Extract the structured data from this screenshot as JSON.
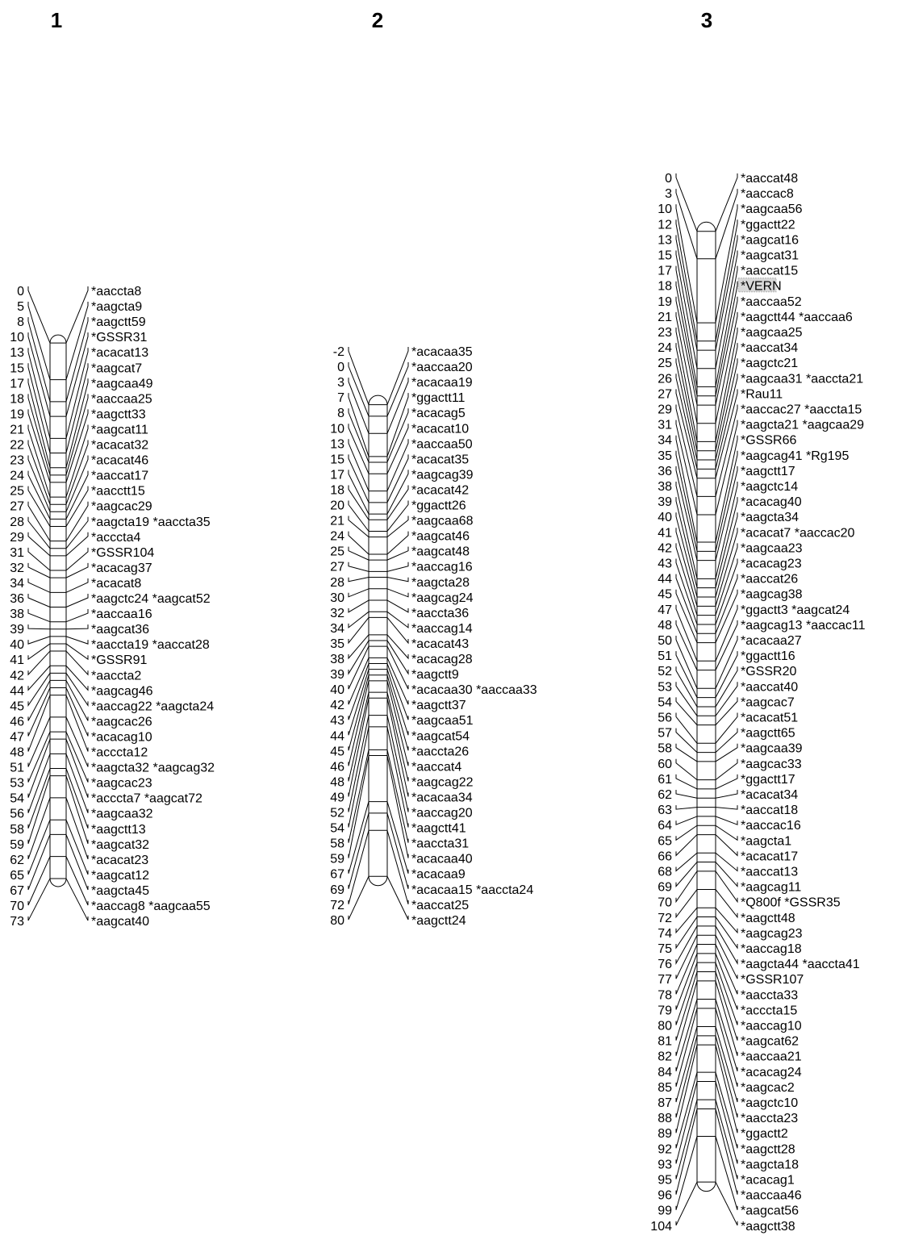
{
  "maps": [
    {
      "title": "1",
      "markers": [
        {
          "pos": 0,
          "label": "*aaccta8"
        },
        {
          "pos": 5,
          "label": "*aagcta9"
        },
        {
          "pos": 8,
          "label": "*aagctt59"
        },
        {
          "pos": 10,
          "label": "*GSSR31"
        },
        {
          "pos": 13,
          "label": "*acacat13"
        },
        {
          "pos": 15,
          "label": "*aagcat7"
        },
        {
          "pos": 17,
          "label": "*aagcaa49"
        },
        {
          "pos": 18,
          "label": "*aaccaa25"
        },
        {
          "pos": 19,
          "label": "*aagctt33"
        },
        {
          "pos": 21,
          "label": "*aagcat11"
        },
        {
          "pos": 22,
          "label": "*acacat32"
        },
        {
          "pos": 23,
          "label": "*acacat46"
        },
        {
          "pos": 24,
          "label": "*aaccat17"
        },
        {
          "pos": 25,
          "label": "*aacctt15"
        },
        {
          "pos": 27,
          "label": "*aagcac29"
        },
        {
          "pos": 28,
          "label": "*aagcta19 *aaccta35"
        },
        {
          "pos": 29,
          "label": "*acccta4"
        },
        {
          "pos": 31,
          "label": "*GSSR104"
        },
        {
          "pos": 32,
          "label": "*acacag37"
        },
        {
          "pos": 34,
          "label": "*acacat8"
        },
        {
          "pos": 36,
          "label": "*aagctc24 *aagcat52"
        },
        {
          "pos": 38,
          "label": "*aaccaa16"
        },
        {
          "pos": 39,
          "label": "*aagcat36"
        },
        {
          "pos": 40,
          "label": "*aaccta19 *aaccat28"
        },
        {
          "pos": 41,
          "label": "*GSSR91"
        },
        {
          "pos": 42,
          "label": "*aaccta2"
        },
        {
          "pos": 44,
          "label": "*aagcag46"
        },
        {
          "pos": 45,
          "label": "*aaccag22 *aagcta24"
        },
        {
          "pos": 46,
          "label": "*aagcac26"
        },
        {
          "pos": 47,
          "label": "*acacag10"
        },
        {
          "pos": 48,
          "label": "*acccta12"
        },
        {
          "pos": 51,
          "label": "*aagcta32 *aagcag32"
        },
        {
          "pos": 53,
          "label": "*aagcac23"
        },
        {
          "pos": 54,
          "label": "*acccta7 *aagcat72"
        },
        {
          "pos": 56,
          "label": "*aagcaa32"
        },
        {
          "pos": 58,
          "label": "*aagctt13"
        },
        {
          "pos": 59,
          "label": "*aagcat32"
        },
        {
          "pos": 62,
          "label": "*acacat23"
        },
        {
          "pos": 65,
          "label": "*aagcat12"
        },
        {
          "pos": 67,
          "label": "*aagcta45"
        },
        {
          "pos": 70,
          "label": "*aaccag8 *aagcaa55"
        },
        {
          "pos": 73,
          "label": "*aagcat40"
        }
      ]
    },
    {
      "title": "2",
      "markers": [
        {
          "pos": -2,
          "label": "*acacaa35"
        },
        {
          "pos": 0,
          "label": "*aaccaa20"
        },
        {
          "pos": 3,
          "label": "*acacaa19"
        },
        {
          "pos": 7,
          "label": "*ggactt11"
        },
        {
          "pos": 8,
          "label": "*acacag5"
        },
        {
          "pos": 10,
          "label": "*acacat10"
        },
        {
          "pos": 13,
          "label": "*aaccaa50"
        },
        {
          "pos": 15,
          "label": "*acacat35"
        },
        {
          "pos": 17,
          "label": "*aagcag39"
        },
        {
          "pos": 18,
          "label": "*acacat42"
        },
        {
          "pos": 20,
          "label": "*ggactt26"
        },
        {
          "pos": 21,
          "label": "*aagcaa68"
        },
        {
          "pos": 24,
          "label": "*aagcat46"
        },
        {
          "pos": 25,
          "label": "*aagcat48"
        },
        {
          "pos": 27,
          "label": "*aaccag16"
        },
        {
          "pos": 28,
          "label": "*aagcta28"
        },
        {
          "pos": 30,
          "label": "*aagcag24"
        },
        {
          "pos": 32,
          "label": "*aaccta36"
        },
        {
          "pos": 34,
          "label": "*aaccag14"
        },
        {
          "pos": 35,
          "label": "*acacat43"
        },
        {
          "pos": 38,
          "label": "*acacag28"
        },
        {
          "pos": 39,
          "label": "*aagctt9"
        },
        {
          "pos": 40,
          "label": "*acacaa30 *aaccaa33"
        },
        {
          "pos": 42,
          "label": "*aagctt37"
        },
        {
          "pos": 43,
          "label": "*aagcaa51"
        },
        {
          "pos": 44,
          "label": "*aagcat54"
        },
        {
          "pos": 45,
          "label": "*aaccta26"
        },
        {
          "pos": 46,
          "label": "*aaccat4"
        },
        {
          "pos": 48,
          "label": "*aagcag22"
        },
        {
          "pos": 49,
          "label": "*acacaa34"
        },
        {
          "pos": 52,
          "label": "*aaccag20"
        },
        {
          "pos": 54,
          "label": "*aagctt41"
        },
        {
          "pos": 58,
          "label": "*aaccta31"
        },
        {
          "pos": 59,
          "label": "*acacaa40"
        },
        {
          "pos": 67,
          "label": "*acacaa9"
        },
        {
          "pos": 69,
          "label": "*acacaa15 *aaccta24"
        },
        {
          "pos": 72,
          "label": "*aaccat25"
        },
        {
          "pos": 80,
          "label": "*aagctt24"
        }
      ]
    },
    {
      "title": "3",
      "markers": [
        {
          "pos": 0,
          "label": "*aaccat48"
        },
        {
          "pos": 3,
          "label": "*aaccac8"
        },
        {
          "pos": 10,
          "label": "*aagcaa56"
        },
        {
          "pos": 12,
          "label": "*ggactt22"
        },
        {
          "pos": 13,
          "label": "*aagcat16"
        },
        {
          "pos": 15,
          "label": "*aagcat31"
        },
        {
          "pos": 17,
          "label": "*aaccat15"
        },
        {
          "pos": 18,
          "label": "*VERN",
          "highlight": true
        },
        {
          "pos": 19,
          "label": "*aaccaa52"
        },
        {
          "pos": 21,
          "label": "*aagctt44 *aaccaa6"
        },
        {
          "pos": 23,
          "label": "*aagcaa25"
        },
        {
          "pos": 24,
          "label": "*aaccat34"
        },
        {
          "pos": 25,
          "label": "*aagctc21"
        },
        {
          "pos": 26,
          "label": "*aagcaa31 *aaccta21"
        },
        {
          "pos": 27,
          "label": "*Rau11"
        },
        {
          "pos": 29,
          "label": "*aaccac27 *aaccta15"
        },
        {
          "pos": 31,
          "label": "*aagcta21 *aagcaa29"
        },
        {
          "pos": 34,
          "label": "*GSSR66"
        },
        {
          "pos": 35,
          "label": "*aagcag41 *Rg195"
        },
        {
          "pos": 36,
          "label": "*aagctt17"
        },
        {
          "pos": 38,
          "label": "*aagctc14"
        },
        {
          "pos": 39,
          "label": "*acacag40"
        },
        {
          "pos": 40,
          "label": "*aagcta34"
        },
        {
          "pos": 41,
          "label": "*acacat7 *aaccac20"
        },
        {
          "pos": 42,
          "label": "*aagcaa23"
        },
        {
          "pos": 43,
          "label": "*acacag23"
        },
        {
          "pos": 44,
          "label": "*aaccat26"
        },
        {
          "pos": 45,
          "label": "*aagcag38"
        },
        {
          "pos": 47,
          "label": "*ggactt3 *aagcat24"
        },
        {
          "pos": 48,
          "label": "*aagcag13 *aaccac11"
        },
        {
          "pos": 50,
          "label": "*acacaa27"
        },
        {
          "pos": 51,
          "label": "*ggactt16"
        },
        {
          "pos": 52,
          "label": "*GSSR20"
        },
        {
          "pos": 53,
          "label": "*aaccat40"
        },
        {
          "pos": 54,
          "label": "*aagcac7"
        },
        {
          "pos": 56,
          "label": "*acacat51"
        },
        {
          "pos": 57,
          "label": "*aagctt65"
        },
        {
          "pos": 58,
          "label": "*aagcaa39"
        },
        {
          "pos": 60,
          "label": "*aagcac33"
        },
        {
          "pos": 61,
          "label": "*ggactt17"
        },
        {
          "pos": 62,
          "label": "*acacat34"
        },
        {
          "pos": 63,
          "label": "*aaccat18"
        },
        {
          "pos": 64,
          "label": "*aaccac16"
        },
        {
          "pos": 65,
          "label": "*aagcta1"
        },
        {
          "pos": 66,
          "label": "*acacat17"
        },
        {
          "pos": 68,
          "label": "*aaccat13"
        },
        {
          "pos": 69,
          "label": "*aagcag11"
        },
        {
          "pos": 70,
          "label": "*Q800f *GSSR35"
        },
        {
          "pos": 72,
          "label": "*aagctt48"
        },
        {
          "pos": 74,
          "label": "*aagcag23"
        },
        {
          "pos": 75,
          "label": "*aaccag18"
        },
        {
          "pos": 76,
          "label": "*aagcta44 *aaccta41"
        },
        {
          "pos": 77,
          "label": "*GSSR107"
        },
        {
          "pos": 78,
          "label": "*aaccta33"
        },
        {
          "pos": 79,
          "label": "*acccta15"
        },
        {
          "pos": 80,
          "label": "*aaccag10"
        },
        {
          "pos": 81,
          "label": "*aagcat62"
        },
        {
          "pos": 82,
          "label": "*aaccaa21"
        },
        {
          "pos": 84,
          "label": "*acacag24"
        },
        {
          "pos": 85,
          "label": "*aagcac2"
        },
        {
          "pos": 87,
          "label": "*aagctc10"
        },
        {
          "pos": 88,
          "label": "*aaccta23"
        },
        {
          "pos": 89,
          "label": "*ggactt2"
        },
        {
          "pos": 92,
          "label": "*aagctt28"
        },
        {
          "pos": 93,
          "label": "*aagcta18"
        },
        {
          "pos": 95,
          "label": "*acacag1"
        },
        {
          "pos": 96,
          "label": "*aaccaa46"
        },
        {
          "pos": 99,
          "label": "*aagcat56"
        },
        {
          "pos": 104,
          "label": "*aagctt38"
        }
      ]
    }
  ]
}
